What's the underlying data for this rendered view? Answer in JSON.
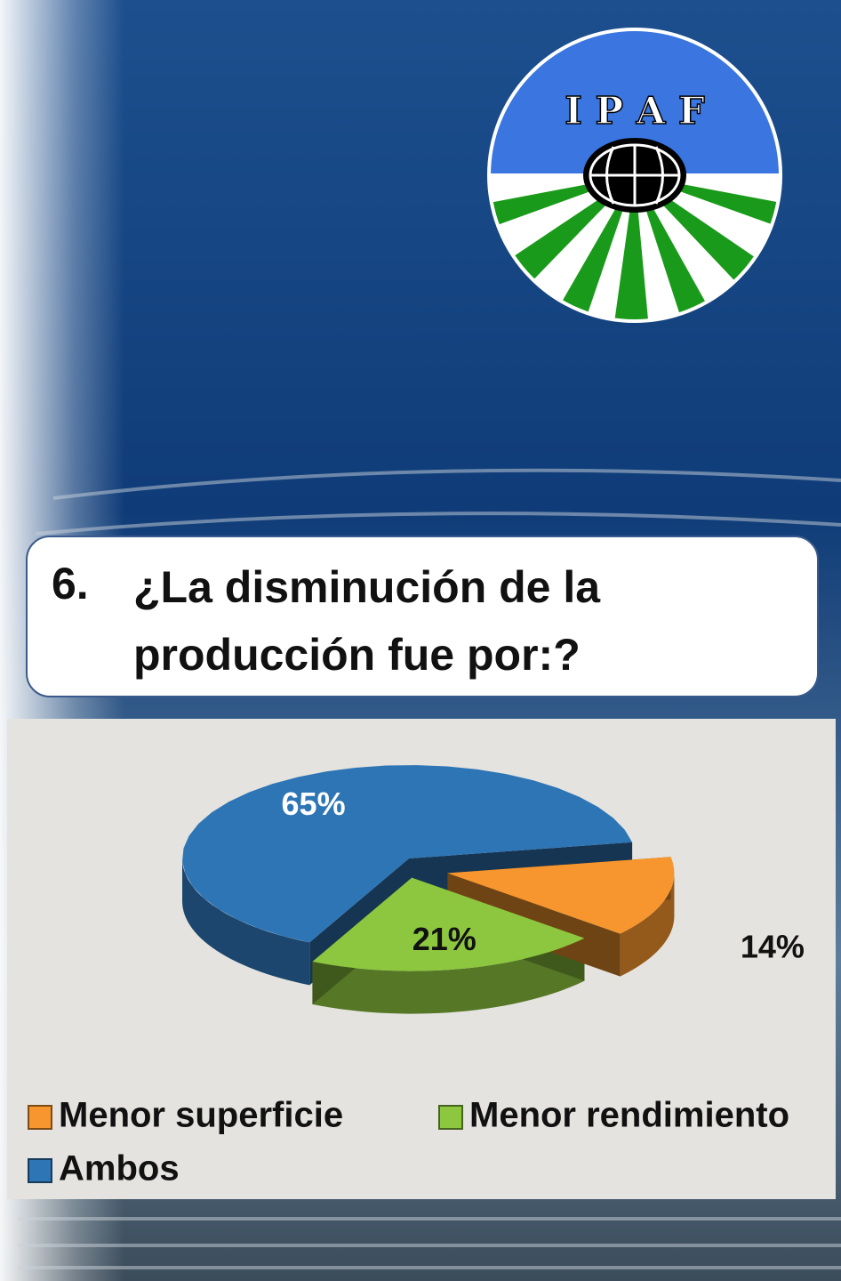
{
  "logo_text": "I P A F",
  "question_number": "6.",
  "question": "¿La disminución de la producción fue por:?",
  "chart_data": {
    "type": "pie",
    "categories": [
      "Menor superficie",
      "Menor rendimiento",
      "Ambos"
    ],
    "values": [
      14,
      21,
      65
    ],
    "value_labels": [
      "14%",
      "21%",
      "65%"
    ],
    "colors": [
      "#f7962e",
      "#8dc63f",
      "#2e75b6"
    ],
    "legend": "bottom"
  }
}
